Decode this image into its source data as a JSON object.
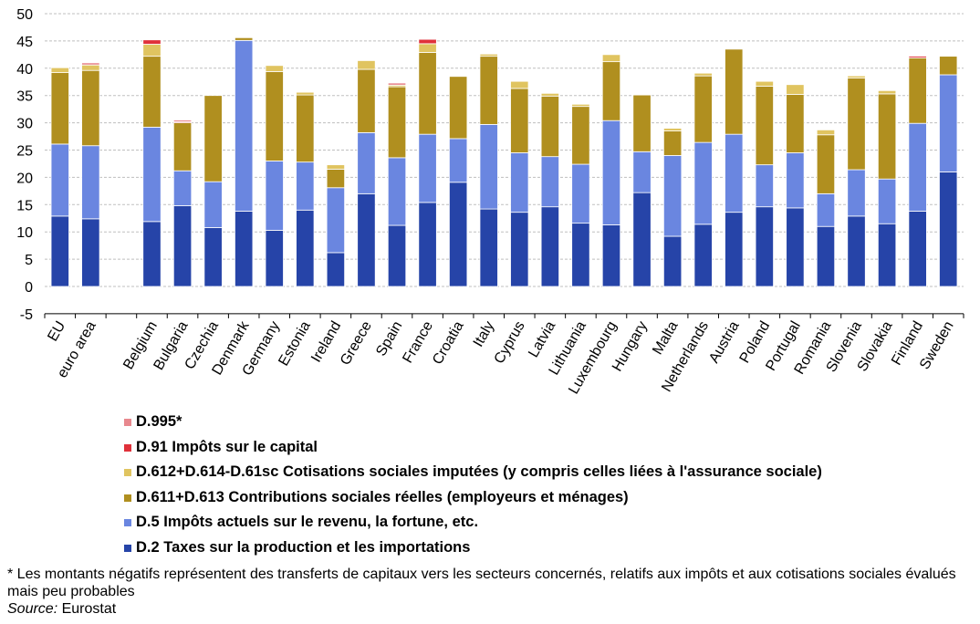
{
  "chart_data": {
    "type": "bar",
    "stacked": true,
    "title": "",
    "xlabel": "",
    "ylabel": "",
    "ylim": [
      -5,
      50
    ],
    "yticks": [
      -5,
      0,
      5,
      10,
      15,
      20,
      25,
      30,
      35,
      40,
      45,
      50
    ],
    "grid": true,
    "legend_position": "bottom-left",
    "categories": [
      "EU",
      "euro area",
      "",
      "Belgium",
      "Bulgaria",
      "Czechia",
      "Denmark",
      "Germany",
      "Estonia",
      "Ireland",
      "Greece",
      "Spain",
      "France",
      "Croatia",
      "Italy",
      "Cyprus",
      "Latvia",
      "Lithuania",
      "Luxembourg",
      "Hungary",
      "Malta",
      "Netherlands",
      "Austria",
      "Poland",
      "Portugal",
      "Romania",
      "Slovenia",
      "Slovakia",
      "Finland",
      "Sweden"
    ],
    "series": [
      {
        "name": "D.2 Taxes sur la production et les importations",
        "color": "#2644A8",
        "values": [
          12.9,
          12.4,
          null,
          11.9,
          14.8,
          10.8,
          13.8,
          10.3,
          14.0,
          6.2,
          17.0,
          11.2,
          15.4,
          19.1,
          14.2,
          13.6,
          14.6,
          11.6,
          11.3,
          17.2,
          9.2,
          11.4,
          13.6,
          14.6,
          14.4,
          11.0,
          12.9,
          11.5,
          13.8,
          21.0
        ]
      },
      {
        "name": "D.5 Impôts actuels sur le revenu, la fortune, etc.",
        "color": "#6A86E0",
        "values": [
          13.2,
          13.4,
          null,
          17.3,
          6.4,
          8.4,
          31.3,
          12.7,
          8.8,
          11.9,
          11.2,
          12.4,
          12.5,
          8.0,
          15.5,
          10.9,
          9.2,
          10.8,
          19.1,
          7.5,
          14.8,
          15.0,
          14.3,
          7.7,
          10.1,
          6.0,
          8.5,
          8.2,
          16.1,
          17.8
        ]
      },
      {
        "name": "D.611+D.613 Contributions sociales réelles (employeurs et ménages)",
        "color": "#B08F1F",
        "values": [
          13.1,
          13.8,
          null,
          13.0,
          8.8,
          15.8,
          0.5,
          16.4,
          12.3,
          3.4,
          11.6,
          13.0,
          15.0,
          11.4,
          12.5,
          11.8,
          11.1,
          10.6,
          10.8,
          10.4,
          4.5,
          12.2,
          15.6,
          14.4,
          10.7,
          10.8,
          16.8,
          15.6,
          12.0,
          3.4
        ]
      },
      {
        "name": "D.612+D.614-D.61sc Cotisations sociales imputées (y compris celles liées à l'assurance sociale)",
        "color": "#E0C460",
        "values": [
          0.9,
          1.0,
          null,
          2.2,
          0,
          0,
          0,
          1.1,
          0.5,
          0.8,
          1.6,
          0.3,
          1.6,
          0,
          0.4,
          1.3,
          0.5,
          0.4,
          1.3,
          0,
          0.5,
          0.5,
          0,
          0.9,
          1.8,
          0.9,
          0.4,
          0.6,
          0,
          0
        ]
      },
      {
        "name": "D.91 Impôts sur le capital",
        "color": "#E0313A",
        "values": [
          0,
          0,
          null,
          0.8,
          0.2,
          0,
          0,
          0,
          0,
          0,
          0,
          0,
          0.8,
          0,
          0,
          0,
          0,
          0,
          0,
          0,
          0,
          0,
          0,
          0,
          0,
          0,
          0,
          0,
          0.3,
          0
        ]
      },
      {
        "name": "D.995*",
        "color": "#E8888E",
        "values": [
          0,
          0.4,
          null,
          0,
          0.3,
          0,
          0,
          0,
          0,
          0,
          0,
          0.4,
          0,
          0,
          0,
          0,
          0,
          0,
          0,
          0,
          0,
          0,
          0,
          0,
          0,
          0,
          0,
          0,
          0,
          0
        ]
      }
    ],
    "legend_order": [
      5,
      4,
      3,
      2,
      1,
      0
    ],
    "footnote": "* Les montants négatifs représentent des transferts de capitaux vers les secteurs concernés, relatifs aux impôts et aux cotisations sociales évalués mais peu probables",
    "source_label": "Source:",
    "source_value": " Eurostat"
  }
}
